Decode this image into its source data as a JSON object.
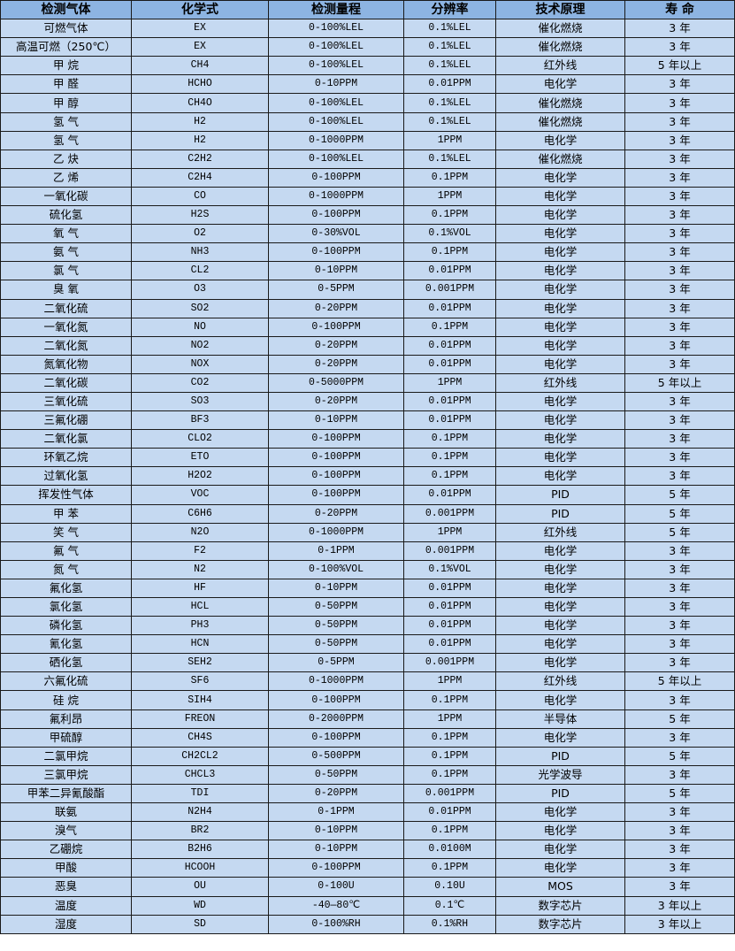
{
  "colors": {
    "header_bg": "#8db4e2",
    "cell_bg": "#c5d9f1",
    "border": "#1a1a1a"
  },
  "table": {
    "headers": [
      "检测气体",
      "化学式",
      "检测量程",
      "分辨率",
      "技术原理",
      "寿 命"
    ],
    "rows": [
      [
        "可燃气体",
        "EX",
        "0-100%LEL",
        "0.1%LEL",
        "催化燃烧",
        "3 年"
      ],
      [
        "高温可燃（250℃）",
        "EX",
        "0-100%LEL",
        "0.1%LEL",
        "催化燃烧",
        "3 年"
      ],
      [
        "甲 烷",
        "CH4",
        "0-100%LEL",
        "0.1%LEL",
        "红外线",
        "5 年以上"
      ],
      [
        "甲 醛",
        "HCHO",
        "0-10PPM",
        "0.01PPM",
        "电化学",
        "3 年"
      ],
      [
        "甲 醇",
        "CH4O",
        "0-100%LEL",
        "0.1%LEL",
        "催化燃烧",
        "3 年"
      ],
      [
        "氢 气",
        "H2",
        "0-100%LEL",
        "0.1%LEL",
        "催化燃烧",
        "3 年"
      ],
      [
        "氢 气",
        "H2",
        "0-1000PPM",
        "1PPM",
        "电化学",
        "3 年"
      ],
      [
        "乙 炔",
        "C2H2",
        "0-100%LEL",
        "0.1%LEL",
        "催化燃烧",
        "3 年"
      ],
      [
        "乙 烯",
        "C2H4",
        "0-100PPM",
        "0.1PPM",
        "电化学",
        "3 年"
      ],
      [
        "一氧化碳",
        "CO",
        "0-1000PPM",
        "1PPM",
        "电化学",
        "3 年"
      ],
      [
        "硫化氢",
        "H2S",
        "0-100PPM",
        "0.1PPM",
        "电化学",
        "3 年"
      ],
      [
        "氧 气",
        "O2",
        "0-30%VOL",
        "0.1%VOL",
        "电化学",
        "3 年"
      ],
      [
        "氨 气",
        "NH3",
        "0-100PPM",
        "0.1PPM",
        "电化学",
        "3 年"
      ],
      [
        "氯 气",
        "CL2",
        "0-10PPM",
        "0.01PPM",
        "电化学",
        "3 年"
      ],
      [
        "臭 氧",
        "O3",
        "0-5PPM",
        "0.001PPM",
        "电化学",
        "3 年"
      ],
      [
        "二氧化硫",
        "SO2",
        "0-20PPM",
        "0.01PPM",
        "电化学",
        "3 年"
      ],
      [
        "一氧化氮",
        "NO",
        "0-100PPM",
        "0.1PPM",
        "电化学",
        "3 年"
      ],
      [
        "二氧化氮",
        "NO2",
        "0-20PPM",
        "0.01PPM",
        "电化学",
        "3 年"
      ],
      [
        "氮氧化物",
        "NOX",
        "0-20PPM",
        "0.01PPM",
        "电化学",
        "3 年"
      ],
      [
        "二氧化碳",
        "CO2",
        "0-5000PPM",
        "1PPM",
        "红外线",
        "5 年以上"
      ],
      [
        "三氧化硫",
        "SO3",
        "0-20PPM",
        "0.01PPM",
        "电化学",
        "3 年"
      ],
      [
        "三氟化硼",
        "BF3",
        "0-10PPM",
        "0.01PPM",
        "电化学",
        "3 年"
      ],
      [
        "二氧化氯",
        "CLO2",
        "0-100PPM",
        "0.1PPM",
        "电化学",
        "3 年"
      ],
      [
        "环氧乙烷",
        "ETO",
        "0-100PPM",
        "0.1PPM",
        "电化学",
        "3 年"
      ],
      [
        "过氧化氢",
        "H2O2",
        "0-100PPM",
        "0.1PPM",
        "电化学",
        "3 年"
      ],
      [
        "挥发性气体",
        "VOC",
        "0-100PPM",
        "0.01PPM",
        "PID",
        "5 年"
      ],
      [
        "甲 苯",
        "C6H6",
        "0-20PPM",
        "0.001PPM",
        "PID",
        "5 年"
      ],
      [
        "笑 气",
        "N2O",
        "0-1000PPM",
        "1PPM",
        "红外线",
        "5 年"
      ],
      [
        "氟 气",
        "F2",
        "0-1PPM",
        "0.001PPM",
        "电化学",
        "3 年"
      ],
      [
        "氮 气",
        "N2",
        "0-100%VOL",
        "0.1%VOL",
        "电化学",
        "3 年"
      ],
      [
        "氟化氢",
        "HF",
        "0-10PPM",
        "0.01PPM",
        "电化学",
        "3 年"
      ],
      [
        "氯化氢",
        "HCL",
        "0-50PPM",
        "0.01PPM",
        "电化学",
        "3 年"
      ],
      [
        "磷化氢",
        "PH3",
        "0-50PPM",
        "0.01PPM",
        "电化学",
        "3 年"
      ],
      [
        "氰化氢",
        "HCN",
        "0-50PPM",
        "0.01PPM",
        "电化学",
        "3 年"
      ],
      [
        "硒化氢",
        "SEH2",
        "0-5PPM",
        "0.001PPM",
        "电化学",
        "3 年"
      ],
      [
        "六氟化硫",
        "SF6",
        "0-1000PPM",
        "1PPM",
        "红外线",
        "5 年以上"
      ],
      [
        "硅 烷",
        "SIH4",
        "0-100PPM",
        "0.1PPM",
        "电化学",
        "3 年"
      ],
      [
        "氟利昂",
        "FREON",
        "0-2000PPM",
        "1PPM",
        "半导体",
        "5 年"
      ],
      [
        "甲硫醇",
        "CH4S",
        "0-100PPM",
        "0.1PPM",
        "电化学",
        "3 年"
      ],
      [
        "二氯甲烷",
        "CH2CL2",
        "0-500PPM",
        "0.1PPM",
        "PID",
        "5 年"
      ],
      [
        "三氯甲烷",
        "CHCL3",
        "0-50PPM",
        "0.1PPM",
        "光学波导",
        "3 年"
      ],
      [
        "甲苯二异氰酸酯",
        "TDI",
        "0-20PPM",
        "0.001PPM",
        "PID",
        "5 年"
      ],
      [
        "联氨",
        "N2H4",
        "0-1PPM",
        "0.01PPM",
        "电化学",
        "3 年"
      ],
      [
        "溴气",
        "BR2",
        "0-10PPM",
        "0.1PPM",
        "电化学",
        "3 年"
      ],
      [
        "乙硼烷",
        "B2H6",
        "0-10PPM",
        "0.0100M",
        "电化学",
        "3 年"
      ],
      [
        "甲酸",
        "HCOOH",
        "0-100PPM",
        "0.1PPM",
        "电化学",
        "3 年"
      ],
      [
        "恶臭",
        "OU",
        "0-100U",
        "0.10U",
        "MOS",
        "3 年"
      ],
      [
        "温度",
        "WD",
        "-40—80℃",
        "0.1℃",
        "数字芯片",
        "3 年以上"
      ],
      [
        "湿度",
        "SD",
        "0-100%RH",
        "0.1%RH",
        "数字芯片",
        "3 年以上"
      ]
    ]
  }
}
